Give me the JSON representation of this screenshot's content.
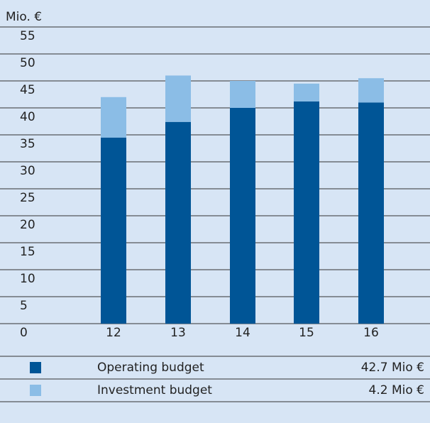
{
  "chart_data": {
    "type": "bar",
    "stacked": true,
    "y_label": "Mio. €",
    "categories": [
      "12",
      "13",
      "14",
      "15",
      "16"
    ],
    "series": [
      {
        "name": "Operating budget",
        "color": "#005596",
        "values": [
          34.5,
          37.4,
          40,
          41.2,
          41
        ],
        "legend_value": "42.7 Mio €"
      },
      {
        "name": "Investment budget",
        "color": "#8bbde6",
        "values": [
          7.5,
          8.6,
          5,
          3.3,
          4.5
        ],
        "legend_value": "4.2 Mio €"
      }
    ],
    "ylim": [
      0,
      55
    ],
    "yticks": [
      0,
      5,
      10,
      15,
      20,
      25,
      30,
      35,
      40,
      45,
      50,
      55
    ],
    "grid": true
  }
}
